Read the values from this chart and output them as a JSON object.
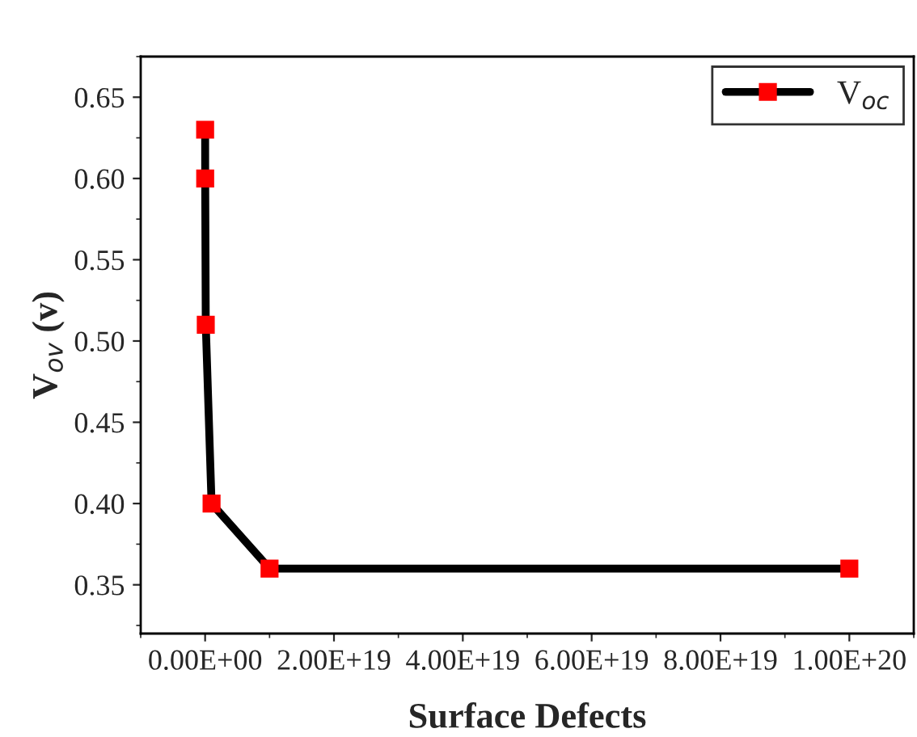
{
  "chart_data": {
    "type": "line",
    "xlabel": "Surface Defects",
    "ylabel": "V$_{ov}$ (v)",
    "x": [
      1000000000000000.0,
      1e+16,
      1e+17,
      1e+18,
      1e+19,
      1e+20
    ],
    "series": [
      {
        "name": "V$_{oc}$",
        "color": "#000000",
        "colors": [
          "#ff0000",
          "#ff0000",
          "#ff0000",
          "#ff0000",
          "#ff0000",
          "#ff0000"
        ],
        "values": [
          0.63,
          0.6,
          0.51,
          0.4,
          0.36,
          0.36
        ]
      }
    ],
    "marker": "square",
    "line_style": "solid",
    "legend": "top right",
    "grid": false,
    "xlim": [
      -1e+19,
      1.1e+20
    ],
    "xticks": [
      {
        "value": 0,
        "label": "0.00E+00"
      },
      {
        "value": 2e+19,
        "label": "2.00E+19"
      },
      {
        "value": 4e+19,
        "label": "4.00E+19"
      },
      {
        "value": 6e+19,
        "label": "6.00E+19"
      },
      {
        "value": 8e+19,
        "label": "8.00E+19"
      },
      {
        "value": 1e+20,
        "label": "1.00E+20"
      }
    ],
    "ylim": [
      0.32,
      0.675
    ],
    "yticks": [
      {
        "value": 0.35,
        "label": "0.35"
      },
      {
        "value": 0.4,
        "label": "0.40"
      },
      {
        "value": 0.45,
        "label": "0.45"
      },
      {
        "value": 0.5,
        "label": "0.50"
      },
      {
        "value": 0.55,
        "label": "0.55"
      },
      {
        "value": 0.6,
        "label": "0.60"
      },
      {
        "value": 0.65,
        "label": "0.65"
      }
    ]
  }
}
